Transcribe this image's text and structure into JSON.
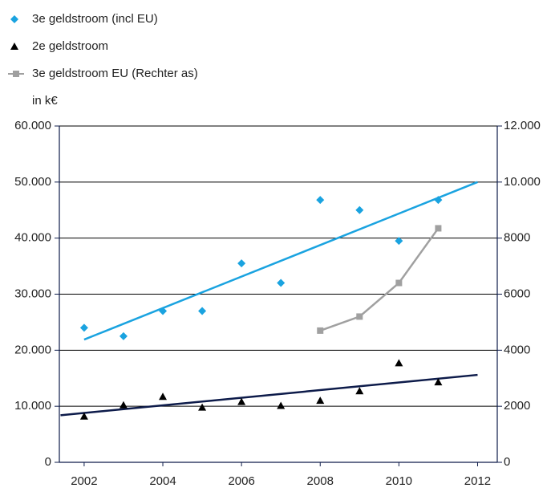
{
  "chart_data": {
    "type": "scatter",
    "unit_label": "in k€",
    "xlim": [
      2001.37,
      2012.5
    ],
    "xticks": [
      2002,
      2004,
      2006,
      2008,
      2010,
      2012
    ],
    "ylim": [
      0,
      60000
    ],
    "yticks": [
      {
        "value": 0,
        "label": "0"
      },
      {
        "value": 10000,
        "label": "10.000"
      },
      {
        "value": 20000,
        "label": "20.000"
      },
      {
        "value": 30000,
        "label": "30.000"
      },
      {
        "value": 40000,
        "label": "40.000"
      },
      {
        "value": 50000,
        "label": "50.000"
      },
      {
        "value": 60000,
        "label": "60.000"
      }
    ],
    "y2lim": [
      0,
      12000
    ],
    "y2ticks": [
      0,
      2000,
      4000,
      6000,
      8000,
      {
        "value": 10000,
        "label": "10.000"
      },
      {
        "value": 12000,
        "label": "12.000"
      }
    ],
    "grid": true,
    "legend": "top-left",
    "series": [
      {
        "name": "3e geldstroom (incl EU)",
        "color": "#1aa3e0",
        "marker": "diamond",
        "x": [
          2002,
          2003,
          2004,
          2005,
          2006,
          2007,
          2008,
          2009,
          2010,
          2011
        ],
        "values": [
          24000,
          22500,
          27000,
          27000,
          35500,
          32000,
          46800,
          45000,
          39500,
          46800
        ],
        "trendline": {
          "x": [
            2002,
            2012
          ],
          "values": [
            21900,
            50000
          ]
        }
      },
      {
        "name": "2e geldstroom",
        "color": "#000000",
        "marker": "triangle",
        "x": [
          2002,
          2003,
          2004,
          2005,
          2006,
          2007,
          2008,
          2009,
          2010,
          2011
        ],
        "values": [
          8200,
          10200,
          11700,
          9800,
          10800,
          10100,
          11000,
          12700,
          17700,
          14300
        ],
        "trendline": {
          "x": [
            2001.4,
            2012
          ],
          "values": [
            8400,
            15600
          ],
          "color": "#0d1b4a"
        }
      },
      {
        "name": "3e geldstroom EU (Rechter as)",
        "color": "#a0a0a0",
        "marker": "square-line",
        "axis": "y2",
        "x": [
          2008,
          2009,
          2010,
          2011
        ],
        "values": [
          4700,
          5200,
          6400,
          8350
        ]
      }
    ]
  }
}
